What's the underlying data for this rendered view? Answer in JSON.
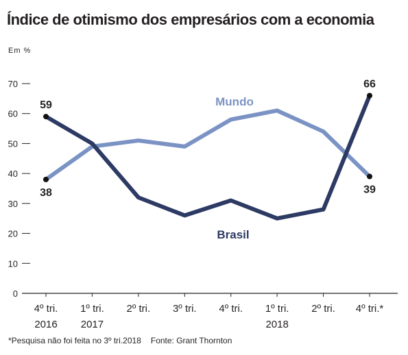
{
  "chart_data": {
    "type": "line",
    "title": "Índice de otimismo dos empresários com a economia",
    "unit_label": "Em %",
    "categories": [
      [
        "4º tri.",
        "2016"
      ],
      [
        "1º tri.",
        "2017"
      ],
      [
        "2º tri.",
        ""
      ],
      [
        "3º tri.",
        ""
      ],
      [
        "4º tri.",
        ""
      ],
      [
        "1º tri.",
        "2018"
      ],
      [
        "2º tri.",
        ""
      ],
      [
        "4º tri.*",
        ""
      ]
    ],
    "ylim": [
      0,
      70
    ],
    "yticks": [
      0,
      10,
      20,
      30,
      40,
      50,
      60,
      70
    ],
    "grid": false,
    "series": [
      {
        "name": "Mundo",
        "color": "#7b93c4",
        "values": [
          38,
          49,
          51,
          49,
          58,
          61,
          54,
          39
        ]
      },
      {
        "name": "Brasil",
        "color": "#2d3a63",
        "values": [
          59,
          50,
          32,
          26,
          31,
          25,
          28,
          66
        ]
      }
    ],
    "data_labels": [
      {
        "series": "Brasil",
        "index": 0,
        "text": "59"
      },
      {
        "series": "Mundo",
        "index": 0,
        "text": "38"
      },
      {
        "series": "Brasil",
        "index": 7,
        "text": "66"
      },
      {
        "series": "Mundo",
        "index": 7,
        "text": "39"
      }
    ]
  },
  "footnote": "*Pesquisa não foi feita no 3º tri.2018",
  "source": "Fonte: Grant Thornton"
}
